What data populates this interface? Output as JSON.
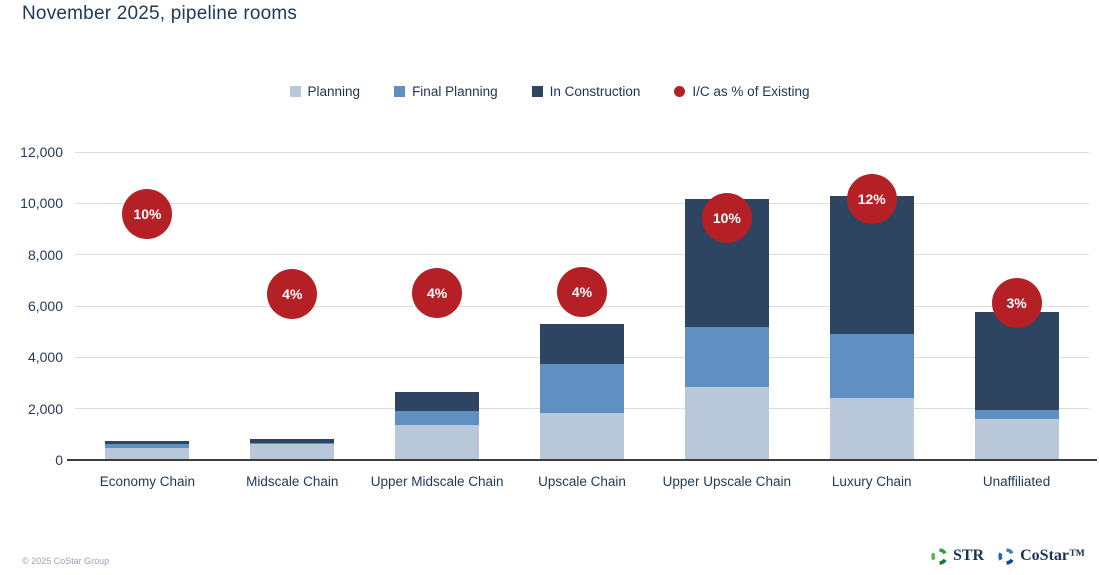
{
  "title": "November 2025, pipeline rooms",
  "chart_data": {
    "type": "bar",
    "stacked": true,
    "title": "November 2025, pipeline rooms",
    "categories": [
      "Economy Chain",
      "Midscale Chain",
      "Upper Midscale Chain",
      "Upscale Chain",
      "Upper Upscale Chain",
      "Luxury Chain",
      "Unaffiliated"
    ],
    "series": [
      {
        "name": "Planning",
        "color": "#b9c8d8",
        "values": [
          460,
          620,
          1350,
          1840,
          2830,
          2410,
          1600
        ]
      },
      {
        "name": "Final Planning",
        "color": "#6090c2",
        "values": [
          150,
          60,
          550,
          1890,
          2350,
          2500,
          350
        ]
      },
      {
        "name": "In Construction",
        "color": "#2e4561",
        "values": [
          140,
          140,
          750,
          1570,
          4970,
          5390,
          3800
        ]
      }
    ],
    "totals": [
      750,
      820,
      2650,
      5300,
      10150,
      10300,
      5750
    ],
    "bubble_series": {
      "name": "I/C as % of Existing",
      "color": "#b42025",
      "labels": [
        "10%",
        "4%",
        "4%",
        "4%",
        "10%",
        "12%",
        "3%"
      ],
      "values_pct": [
        10,
        4,
        4,
        4,
        10,
        12,
        3
      ],
      "y_positions": [
        9580,
        6470,
        6500,
        6540,
        9430,
        10170,
        6120
      ]
    },
    "ylabel": "",
    "xlabel": "",
    "ylim": [
      0,
      12000
    ],
    "ytick_step": 2000,
    "grid": true,
    "legend_position": "top"
  },
  "footer": {
    "copyright": "© 2025 CoStar Group",
    "logos": [
      {
        "text": "STR"
      },
      {
        "text": "CoStar™"
      }
    ]
  },
  "colors": {
    "title_text": "#203a5c",
    "axis_text": "#243a5c",
    "gridline": "#dcdcdc",
    "axis_line": "#3d3d3d",
    "str_logo_green": "#2f9e41",
    "costar_logo_blue": "#1f66ad"
  }
}
